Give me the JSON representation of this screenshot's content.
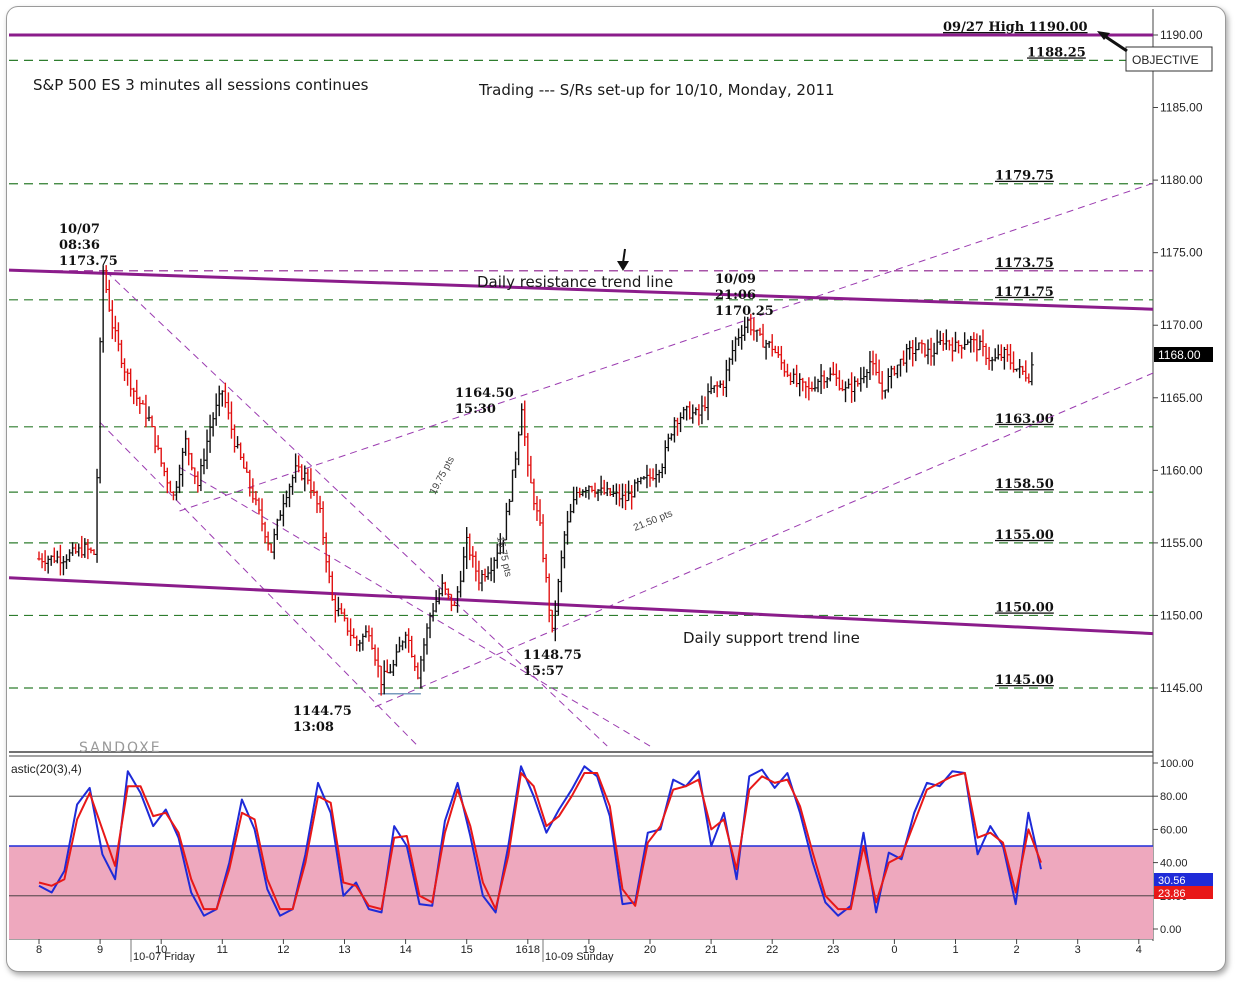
{
  "chart_data": [
    {
      "type": "candlestick",
      "title": "S&P 500 ES 3 minutes all sessions continues",
      "subtitle": "Trading --- S/Rs set-up for 10/10, Monday, 2011",
      "ylim": [
        1141,
        1192
      ],
      "y_ticks": [
        "1190.00",
        "1185.00",
        "1180.00",
        "1175.00",
        "1170.00",
        "1165.00",
        "1160.00",
        "1155.00",
        "1150.00",
        "1145.00"
      ],
      "x_ticks": [
        "8",
        "9",
        "10",
        "11",
        "12",
        "13",
        "14",
        "15",
        "1618",
        "19",
        "20",
        "21",
        "22",
        "23",
        "0",
        "1",
        "2",
        "3",
        "4"
      ],
      "session_labels": [
        "10-07 Friday",
        "10-09 Sunday"
      ],
      "last_price": "1168.00",
      "levels": [
        {
          "value": 1190.0,
          "label": "09/27 High 1190.00",
          "style": "solid",
          "color": "#8b1c8b"
        },
        {
          "value": 1188.25,
          "label": "1188.25",
          "style": "dashed",
          "color": "#2e7d2e"
        },
        {
          "value": 1179.75,
          "label": "1179.75",
          "style": "dashed",
          "color": "#2e7d2e"
        },
        {
          "value": 1173.75,
          "label": "1173.75",
          "style": "dashed",
          "color": "#8b1c8b"
        },
        {
          "value": 1171.75,
          "label": "1171.75",
          "style": "dashed",
          "color": "#2e7d2e"
        },
        {
          "value": 1163.0,
          "label": "1163.00",
          "style": "dashed",
          "color": "#2e7d2e"
        },
        {
          "value": 1158.5,
          "label": "1158.50",
          "style": "dashed",
          "color": "#2e7d2e"
        },
        {
          "value": 1155.0,
          "label": "1155.00",
          "style": "dashed",
          "color": "#2e7d2e"
        },
        {
          "value": 1150.0,
          "label": "1150.00",
          "style": "dashed",
          "color": "#2e7d2e"
        },
        {
          "value": 1145.0,
          "label": "1145.00",
          "style": "dashed",
          "color": "#2e7d2e"
        }
      ],
      "trend_lines": [
        {
          "label": "Daily resistance trend line",
          "from": [
            0.0,
            1173.8
          ],
          "to": [
            18.95,
            1171.0
          ]
        },
        {
          "label": "Daily support trend line",
          "from": [
            0.0,
            1152.6
          ],
          "to": [
            18.95,
            1148.6
          ]
        }
      ],
      "objective_label": "OBJECTIVE",
      "annotations": [
        {
          "text": [
            "10/07",
            "08:36",
            "1173.75"
          ],
          "x": 0.85,
          "y": 1173.75
        },
        {
          "text": [
            "10/09",
            "21:06",
            "1170.25"
          ],
          "x": 11.8,
          "y": 1170.25
        },
        {
          "text": [
            "1164.50",
            "15:30"
          ],
          "x": 7.9,
          "y": 1164.5
        },
        {
          "text": [
            "1148.75",
            "15:57"
          ],
          "x": 8.4,
          "y": 1148.75
        },
        {
          "text": [
            "1144.75",
            "13:08"
          ],
          "x": 5.6,
          "y": 1144.75
        }
      ],
      "range_labels": [
        "19.75 pts",
        "15.75 pts",
        "21.50 pts"
      ],
      "watermark": "SANDOXE",
      "series": [
        {
          "name": "ES 3 min",
          "close_path": [
            [
              0.0,
              1153.9
            ],
            [
              0.4,
              1154.0
            ],
            [
              0.75,
              1154.6
            ],
            [
              0.92,
              1154.2
            ],
            [
              1.0,
              1168.5
            ],
            [
              1.05,
              1173.75
            ],
            [
              1.2,
              1170.0
            ],
            [
              1.4,
              1167.0
            ],
            [
              1.6,
              1165.0
            ],
            [
              1.8,
              1163.5
            ],
            [
              2.0,
              1160.5
            ],
            [
              2.2,
              1158.2
            ],
            [
              2.4,
              1162.0
            ],
            [
              2.6,
              1159.0
            ],
            [
              2.8,
              1163.0
            ],
            [
              3.0,
              1165.5
            ],
            [
              3.2,
              1162.0
            ],
            [
              3.4,
              1159.5
            ],
            [
              3.6,
              1157.0
            ],
            [
              3.8,
              1154.5
            ],
            [
              4.0,
              1158.0
            ],
            [
              4.2,
              1160.0
            ],
            [
              4.4,
              1159.5
            ],
            [
              4.6,
              1157.0
            ],
            [
              4.8,
              1151.0
            ],
            [
              5.0,
              1149.5
            ],
            [
              5.2,
              1148.0
            ],
            [
              5.4,
              1149.0
            ],
            [
              5.6,
              1145.5
            ],
            [
              5.8,
              1146.5
            ],
            [
              6.0,
              1149.0
            ],
            [
              6.2,
              1146.0
            ],
            [
              6.4,
              1150.0
            ],
            [
              6.6,
              1152.0
            ],
            [
              6.8,
              1150.5
            ],
            [
              7.0,
              1155.0
            ],
            [
              7.2,
              1152.5
            ],
            [
              7.4,
              1153.5
            ],
            [
              7.6,
              1155.5
            ],
            [
              7.8,
              1161.0
            ],
            [
              7.9,
              1164.5
            ],
            [
              8.0,
              1160.0
            ],
            [
              8.2,
              1156.0
            ],
            [
              8.4,
              1148.75
            ],
            [
              8.6,
              1155.5
            ],
            [
              8.8,
              1158.5
            ],
            [
              9.0,
              1159.0
            ],
            [
              9.2,
              1158.5
            ],
            [
              9.4,
              1158.3
            ],
            [
              9.6,
              1158.0
            ],
            [
              9.8,
              1159.0
            ],
            [
              10.0,
              1159.5
            ],
            [
              10.2,
              1160.5
            ],
            [
              10.4,
              1163.5
            ],
            [
              10.6,
              1164.0
            ],
            [
              10.8,
              1163.8
            ],
            [
              11.0,
              1165.5
            ],
            [
              11.2,
              1166.0
            ],
            [
              11.4,
              1169.0
            ],
            [
              11.6,
              1170.25
            ],
            [
              11.8,
              1169.0
            ],
            [
              12.0,
              1168.5
            ],
            [
              12.2,
              1167.0
            ],
            [
              12.4,
              1166.0
            ],
            [
              12.6,
              1165.5
            ],
            [
              12.8,
              1166.5
            ],
            [
              13.0,
              1166.5
            ],
            [
              13.2,
              1165.5
            ],
            [
              13.4,
              1166.0
            ],
            [
              13.6,
              1167.5
            ],
            [
              13.8,
              1165.5
            ],
            [
              14.0,
              1167.0
            ],
            [
              14.2,
              1168.0
            ],
            [
              14.4,
              1168.5
            ],
            [
              14.6,
              1168.0
            ],
            [
              14.8,
              1169.0
            ],
            [
              15.0,
              1168.5
            ],
            [
              15.2,
              1169.0
            ],
            [
              15.4,
              1168.5
            ],
            [
              15.6,
              1167.5
            ],
            [
              15.8,
              1168.0
            ],
            [
              16.0,
              1167.0
            ],
            [
              16.2,
              1166.5
            ],
            [
              16.3,
              1168.0
            ]
          ]
        }
      ]
    },
    {
      "type": "line",
      "title": "astic(20(3),4)",
      "ylim": [
        0,
        100
      ],
      "y_ticks": [
        "100.00",
        "80.00",
        "60.00",
        "40.00",
        "20.00",
        "0.00"
      ],
      "shaded_band": [
        0,
        50
      ],
      "current_values": [
        "30.56",
        "23.86"
      ],
      "series": [
        {
          "color": "#1f2bd8",
          "values": [
            26,
            22,
            35,
            75,
            85,
            45,
            30,
            95,
            82,
            62,
            72,
            55,
            22,
            8,
            12,
            40,
            78,
            60,
            24,
            8,
            12,
            45,
            88,
            70,
            20,
            28,
            12,
            10,
            62,
            50,
            15,
            14,
            65,
            88,
            56,
            20,
            10,
            50,
            98,
            80,
            58,
            72,
            84,
            98,
            92,
            68,
            15,
            16,
            58,
            60,
            90,
            86,
            95,
            50,
            70,
            30,
            92,
            96,
            85,
            94,
            70,
            40,
            16,
            8,
            14,
            58,
            10,
            46,
            42,
            70,
            88,
            86,
            95,
            94,
            45,
            62,
            50,
            15,
            70,
            36
          ]
        },
        {
          "color": "#e81818",
          "values": [
            28,
            26,
            30,
            66,
            82,
            60,
            38,
            86,
            86,
            68,
            70,
            58,
            30,
            12,
            12,
            36,
            70,
            66,
            30,
            12,
            12,
            40,
            80,
            76,
            28,
            26,
            14,
            12,
            55,
            56,
            20,
            16,
            58,
            84,
            62,
            28,
            12,
            44,
            94,
            86,
            62,
            68,
            80,
            94,
            94,
            74,
            24,
            14,
            52,
            62,
            84,
            86,
            90,
            60,
            66,
            36,
            84,
            92,
            88,
            90,
            74,
            46,
            20,
            12,
            12,
            50,
            16,
            40,
            44,
            64,
            84,
            88,
            92,
            94,
            55,
            58,
            52,
            22,
            60,
            40
          ]
        }
      ]
    }
  ]
}
